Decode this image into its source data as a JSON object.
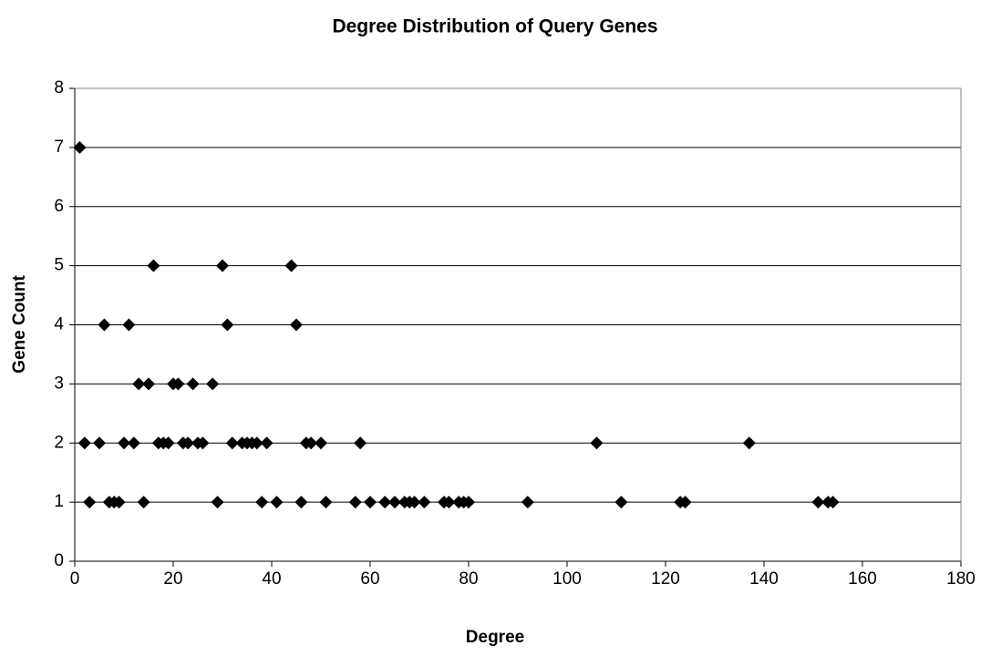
{
  "chart_data": {
    "type": "scatter",
    "title": "Degree Distribution of Query Genes",
    "x_label": "Degree",
    "y_label": "Gene Count",
    "x": [
      1,
      16,
      30,
      44,
      6,
      11,
      31,
      45,
      13,
      15,
      20,
      21,
      24,
      28,
      2,
      5,
      10,
      12,
      17,
      18,
      19,
      22,
      23,
      25,
      26,
      32,
      34,
      35,
      36,
      37,
      39,
      47,
      48,
      50,
      58,
      106,
      137,
      3,
      7,
      8,
      9,
      14,
      29,
      38,
      41,
      46,
      51,
      57,
      60,
      63,
      65,
      67,
      68,
      69,
      71,
      75,
      76,
      78,
      79,
      80,
      92,
      111,
      123,
      124,
      151,
      153,
      154
    ],
    "values": [
      7,
      5,
      5,
      5,
      4,
      4,
      4,
      4,
      3,
      3,
      3,
      3,
      3,
      3,
      2,
      2,
      2,
      2,
      2,
      2,
      2,
      2,
      2,
      2,
      2,
      2,
      2,
      2,
      2,
      2,
      2,
      2,
      2,
      2,
      2,
      2,
      2,
      1,
      1,
      1,
      1,
      1,
      1,
      1,
      1,
      1,
      1,
      1,
      1,
      1,
      1,
      1,
      1,
      1,
      1,
      1,
      1,
      1,
      1,
      1,
      1,
      1,
      1,
      1,
      1,
      1,
      1
    ],
    "color": "#000000",
    "xlim": [
      0,
      180
    ],
    "xticks": [
      0,
      20,
      40,
      60,
      80,
      100,
      120,
      140,
      160,
      180
    ],
    "ylim": [
      0,
      8
    ],
    "yticks": [
      0,
      1,
      2,
      3,
      4,
      5,
      6,
      7,
      8
    ],
    "grid": true
  }
}
